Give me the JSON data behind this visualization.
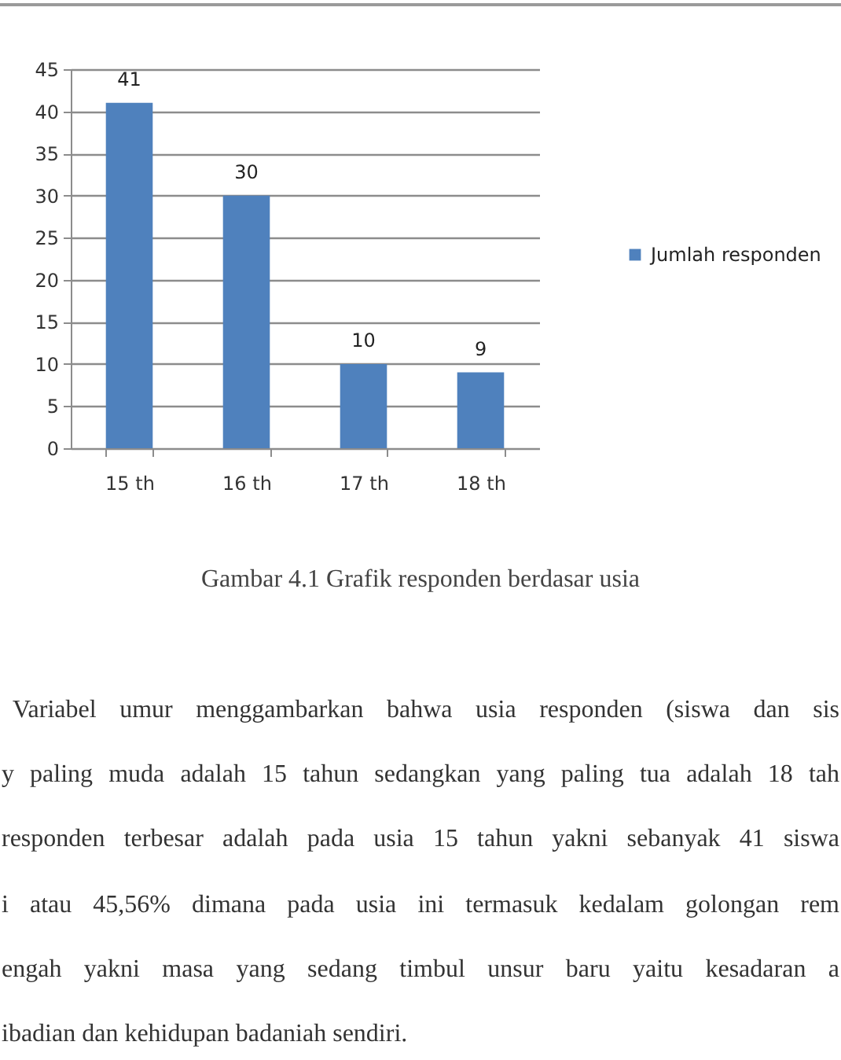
{
  "chart_data": {
    "type": "bar",
    "categories": [
      "15 th",
      "16 th",
      "17 th",
      "18 th"
    ],
    "series": [
      {
        "name": "Jumlah responden",
        "color": "#4f81bd",
        "values": [
          41,
          30,
          10,
          9
        ]
      }
    ],
    "ylim": [
      0,
      45
    ],
    "yticks": [
      0,
      5,
      10,
      15,
      20,
      25,
      30,
      35,
      40,
      45
    ],
    "grid": "y",
    "legend": "right",
    "data_labels": true,
    "annotations": [
      "Gambar 4.1 Grafik responden berdasar usia",
      "Variabel umur menggambarkan bahwa usia responden (siswa dan sis",
      "y paling muda adalah 15 tahun sedangkan yang paling tua adalah 18 tah",
      "responden terbesar adalah pada usia 15 tahun yakni sebanyak 41 siswa",
      "i atau 45,56% dimana pada usia ini termasuk kedalam golongan rem",
      "engah yakni masa yang sedang timbul unsur baru yaitu kesadaran a",
      "ibadian dan kehidupan badaniah sendiri."
    ]
  }
}
